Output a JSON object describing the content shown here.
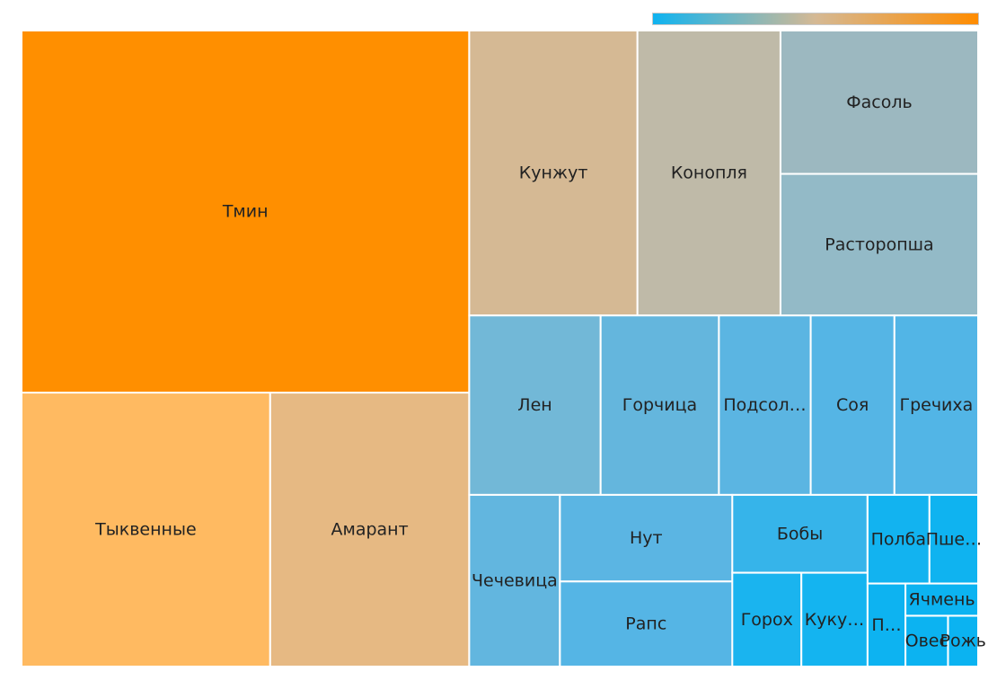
{
  "chart_data": {
    "type": "treemap",
    "color_scale": {
      "low": "#0fb3f0",
      "mid": "#d5b994",
      "high": "#ff8c00"
    },
    "items": [
      {
        "label": "Тмин",
        "value": 180.2,
        "color": "#ff8f00"
      },
      {
        "label": "Тыквенные",
        "value": 75.7,
        "color": "#ffba61"
      },
      {
        "label": "Амарант",
        "value": 60.6,
        "color": "#e6b983"
      },
      {
        "label": "Кунжут",
        "value": 53.3,
        "color": "#d5b994"
      },
      {
        "label": "Конопля",
        "value": 45.3,
        "color": "#bfbaa8"
      },
      {
        "label": "Фасоль",
        "value": 31.5,
        "color": "#9cb8c0"
      },
      {
        "label": "Расторопша",
        "value": 31.1,
        "color": "#93bac7"
      },
      {
        "label": "Лен",
        "value": 26.2,
        "color": "#72b8d7"
      },
      {
        "label": "Горчица",
        "value": 23.6,
        "color": "#64b6dd"
      },
      {
        "label": "Подсол…",
        "value": 18.3,
        "color": "#5bb5e2"
      },
      {
        "label": "Соя",
        "value": 16.7,
        "color": "#55b5e5"
      },
      {
        "label": "Гречиха",
        "value": 16.7,
        "color": "#52b5e6"
      },
      {
        "label": "Чечевица",
        "value": 17.3,
        "color": "#62b6df"
      },
      {
        "label": "Нут",
        "value": 16.6,
        "color": "#5bb5e3"
      },
      {
        "label": "Рапс",
        "value": 16.3,
        "color": "#55b5e5"
      },
      {
        "label": "Бобы",
        "value": 11.7,
        "color": "#36b4ea"
      },
      {
        "label": "Горох",
        "value": 7.2,
        "color": "#1ab4ef"
      },
      {
        "label": "Куку…",
        "value": 6.9,
        "color": "#14b4f0"
      },
      {
        "label": "Полба",
        "value": 6.1,
        "color": "#12b3f0"
      },
      {
        "label": "Пше…",
        "value": 4.8,
        "color": "#0fb3f0"
      },
      {
        "label": "П…",
        "value": 3.5,
        "color": "#0db3f1"
      },
      {
        "label": "Ячмень",
        "value": 2.6,
        "color": "#0cb3f1"
      },
      {
        "label": "Овес",
        "value": 2.4,
        "color": "#0cb3f1"
      },
      {
        "label": "Рожь",
        "value": 1.7,
        "color": "#0bb3f1"
      }
    ]
  }
}
